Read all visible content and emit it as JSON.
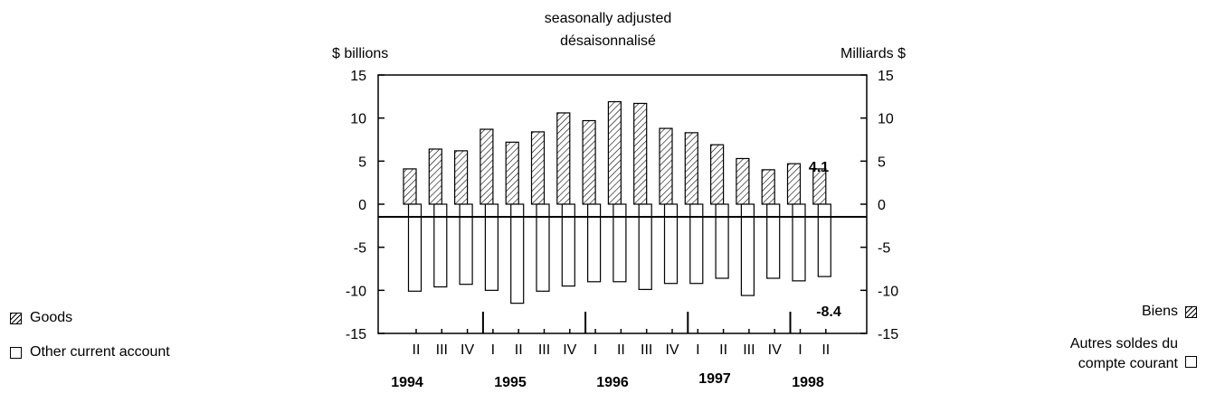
{
  "chart_data": {
    "type": "bar",
    "title_lines": [
      "seasonally adjusted",
      "désaisonnalisé"
    ],
    "ylabel_left": "$ billions",
    "ylabel_right": "Milliards $",
    "ylim": [
      -15,
      15
    ],
    "yticks": [
      "15",
      "10",
      "5",
      "0",
      "-5",
      "-10",
      "-15"
    ],
    "categories": [
      "II",
      "III",
      "IV",
      "I",
      "II",
      "III",
      "IV",
      "I",
      "II",
      "III",
      "IV",
      "I",
      "II",
      "III",
      "IV",
      "I",
      "II"
    ],
    "years": [
      "1994",
      "1995",
      "1996",
      "1997",
      "1998"
    ],
    "series": [
      {
        "name": "Goods",
        "values": [
          4.1,
          6.4,
          6.2,
          8.7,
          7.2,
          8.4,
          10.6,
          9.7,
          11.9,
          11.7,
          8.8,
          8.3,
          6.9,
          5.3,
          4.0,
          4.7,
          4.1
        ]
      },
      {
        "name": "Other current account",
        "values": [
          -10.1,
          -9.6,
          -9.3,
          -10.0,
          -11.5,
          -10.1,
          -9.5,
          -9.0,
          -9.0,
          -9.9,
          -9.2,
          -9.2,
          -8.6,
          -10.6,
          -8.6,
          -8.9,
          -8.4
        ]
      }
    ],
    "data_labels": {
      "goods_last": "4.1",
      "other_last": "-8.4"
    },
    "grid": false
  },
  "legend_left": {
    "goods": "Goods",
    "other": "Other current account"
  },
  "legend_right": {
    "goods": "Biens",
    "other_line1": "Autres soldes du",
    "other_line2": "compte courant"
  }
}
